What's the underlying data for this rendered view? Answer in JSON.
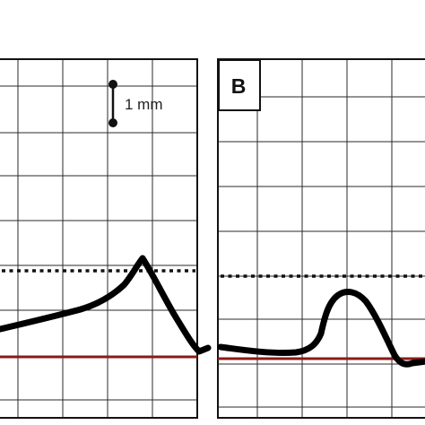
{
  "scale_bar": {
    "label": "1 mm"
  },
  "panels": [
    {
      "id": "A",
      "label": ""
    },
    {
      "id": "B",
      "label": "B"
    }
  ],
  "colors": {
    "trace": "#000000",
    "baseline": "#8b1a1a",
    "grid": "#2a2a2a",
    "dotted_threshold": "#111111"
  }
}
